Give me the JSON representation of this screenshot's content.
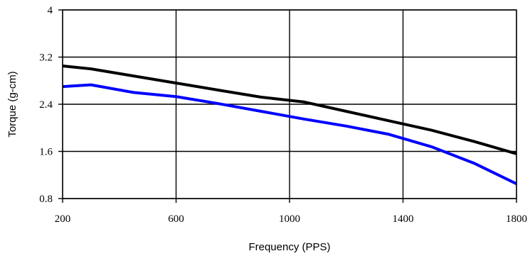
{
  "chart_data": {
    "type": "line",
    "title": "",
    "xlabel": "Frequency (PPS)",
    "ylabel": "Torque (g-cm)",
    "xlim": [
      200,
      1800
    ],
    "ylim": [
      0.8,
      4.0
    ],
    "x_ticks": [
      200,
      600,
      1000,
      1400,
      1800
    ],
    "y_ticks": [
      0.8,
      1.6,
      2.4,
      3.2,
      4.0
    ],
    "x_tick_labels": [
      "200",
      "600",
      "1000",
      "1400",
      "1800"
    ],
    "y_tick_labels": [
      "0.8",
      "1.6",
      "2.4",
      "3.2",
      "4"
    ],
    "grid": true,
    "legend": "none",
    "series": [
      {
        "color": "#000000",
        "x": [
          200,
          300,
          450,
          600,
          750,
          900,
          1050,
          1200,
          1350,
          1500,
          1650,
          1800
        ],
        "y": [
          3.05,
          3.0,
          2.88,
          2.76,
          2.64,
          2.52,
          2.44,
          2.28,
          2.12,
          1.96,
          1.77,
          1.56
        ]
      },
      {
        "color": "#0000ff",
        "x": [
          200,
          300,
          450,
          600,
          750,
          900,
          1050,
          1200,
          1350,
          1500,
          1650,
          1800
        ],
        "y": [
          2.7,
          2.73,
          2.6,
          2.53,
          2.41,
          2.28,
          2.15,
          2.03,
          1.89,
          1.68,
          1.4,
          1.05
        ]
      }
    ]
  }
}
